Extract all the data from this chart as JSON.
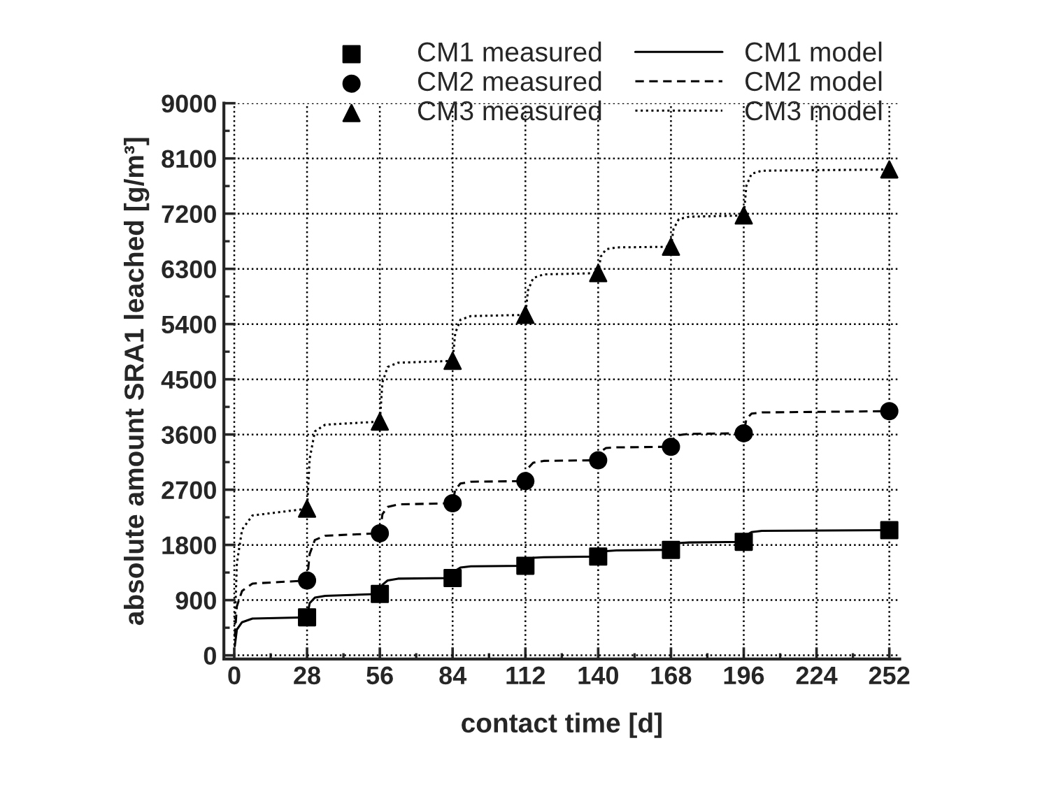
{
  "chart_data": {
    "type": "line",
    "xlabel": "contact time [d]",
    "ylabel": "absolute amount SRA1 leached [g/m³]",
    "xlim": [
      -4,
      256
    ],
    "ylim": [
      -60,
      9000
    ],
    "xticks": [
      0,
      28,
      56,
      84,
      112,
      140,
      168,
      196,
      224,
      252
    ],
    "yticks": [
      0,
      900,
      1800,
      2700,
      3600,
      4500,
      5400,
      6300,
      7200,
      8100,
      9000
    ],
    "grid": true,
    "legend": "top",
    "series": [
      {
        "name": "CM1 measured",
        "type": "scatter",
        "marker": "square",
        "color": "#000000",
        "x": [
          28,
          56,
          84,
          112,
          140,
          168,
          196,
          252
        ],
        "values": [
          620,
          1000,
          1260,
          1460,
          1610,
          1720,
          1850,
          2040
        ]
      },
      {
        "name": "CM2 measured",
        "type": "scatter",
        "marker": "circle",
        "color": "#000000",
        "x": [
          28,
          56,
          84,
          112,
          140,
          168,
          196,
          252
        ],
        "values": [
          1220,
          1990,
          2480,
          2840,
          3180,
          3400,
          3620,
          3980
        ]
      },
      {
        "name": "CM3 measured",
        "type": "scatter",
        "marker": "triangle",
        "color": "#000000",
        "x": [
          28,
          56,
          84,
          112,
          140,
          168,
          196,
          252
        ],
        "values": [
          2390,
          3810,
          4800,
          5550,
          6230,
          6660,
          7170,
          7920
        ]
      },
      {
        "name": "CM1 model",
        "type": "line",
        "line_style": "solid",
        "color": "#000000",
        "x": [
          0.2,
          1,
          3,
          7,
          28,
          29,
          31,
          35,
          56,
          57,
          59,
          63,
          84,
          85,
          87,
          91,
          112,
          113,
          115,
          119,
          140,
          141,
          143,
          147,
          168,
          169,
          171,
          175,
          196,
          197,
          199,
          203,
          252
        ],
        "values": [
          150,
          420,
          540,
          600,
          620,
          850,
          940,
          970,
          1000,
          1150,
          1220,
          1250,
          1260,
          1380,
          1430,
          1450,
          1460,
          1550,
          1590,
          1600,
          1610,
          1680,
          1700,
          1710,
          1720,
          1790,
          1830,
          1840,
          1850,
          1960,
          2010,
          2030,
          2040
        ]
      },
      {
        "name": "CM2 model",
        "type": "line",
        "line_style": "dashed",
        "color": "#000000",
        "x": [
          0.2,
          1,
          3,
          7,
          28,
          29,
          31,
          35,
          56,
          57,
          59,
          63,
          84,
          85,
          87,
          91,
          112,
          113,
          115,
          119,
          140,
          141,
          143,
          147,
          168,
          169,
          171,
          175,
          196,
          197,
          199,
          203,
          252
        ],
        "values": [
          300,
          800,
          1050,
          1170,
          1220,
          1650,
          1880,
          1950,
          1990,
          2300,
          2420,
          2460,
          2480,
          2700,
          2800,
          2830,
          2840,
          3050,
          3140,
          3170,
          3180,
          3320,
          3380,
          3390,
          3400,
          3530,
          3590,
          3610,
          3620,
          3850,
          3940,
          3960,
          3980
        ]
      },
      {
        "name": "CM3 model",
        "type": "line",
        "line_style": "dotted",
        "color": "#000000",
        "x": [
          0.2,
          1,
          3,
          7,
          28,
          29,
          31,
          35,
          56,
          57,
          59,
          63,
          84,
          85,
          87,
          91,
          112,
          113,
          115,
          119,
          140,
          141,
          143,
          147,
          168,
          169,
          171,
          175,
          196,
          197,
          199,
          203,
          252
        ],
        "values": [
          500,
          1500,
          2050,
          2280,
          2390,
          3200,
          3650,
          3760,
          3810,
          4450,
          4700,
          4770,
          4800,
          5250,
          5470,
          5530,
          5550,
          5950,
          6150,
          6210,
          6230,
          6500,
          6620,
          6650,
          6660,
          6950,
          7110,
          7150,
          7170,
          7650,
          7850,
          7900,
          7920
        ]
      }
    ]
  }
}
